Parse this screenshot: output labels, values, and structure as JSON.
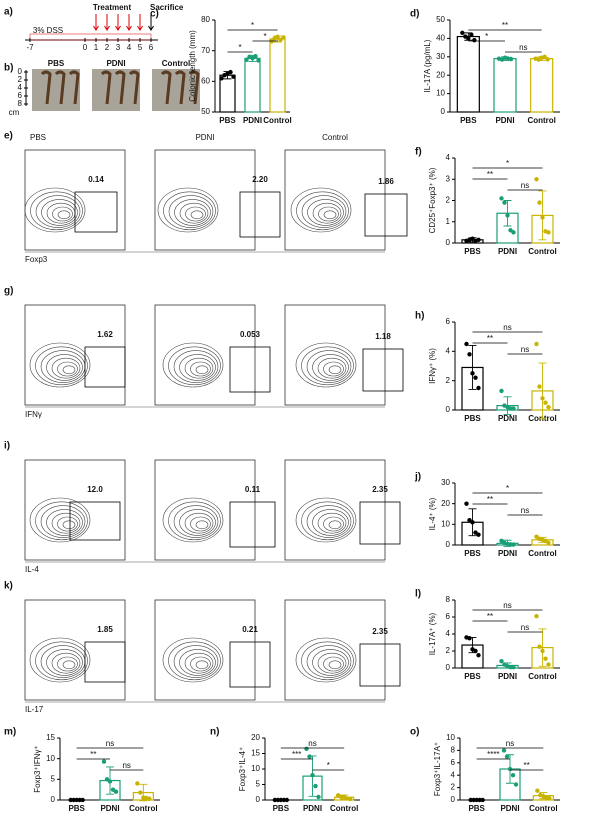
{
  "timeline": {
    "letter": "a)",
    "treatment": "Treatment",
    "sacrifice": "Sacrifice",
    "dss": "3% DSS",
    "days": [
      "-7",
      "0",
      "1",
      "2",
      "3",
      "4",
      "5",
      "6"
    ]
  },
  "photo": {
    "letter": "b)",
    "groups": [
      "PBS",
      "PDNI",
      "Control"
    ],
    "ruler": [
      "0",
      "2",
      "4",
      "6",
      "8"
    ],
    "unit": "cm"
  },
  "flow": {
    "columns": [
      "PBS",
      "PDNI",
      "Control"
    ],
    "rows": [
      {
        "letter": "e)",
        "axis": "Foxp3",
        "gates": [
          "0.14",
          "2.20",
          "1.86"
        ]
      },
      {
        "letter": "g)",
        "axis": "IFNγ",
        "gates": [
          "1.62",
          "0.053",
          "1.18"
        ]
      },
      {
        "letter": "i)",
        "axis": "IL-4",
        "gates": [
          "12.0",
          "0.11",
          "2.35"
        ]
      },
      {
        "letter": "k)",
        "axis": "IL-17",
        "gates": [
          "1.85",
          "0.21",
          "2.35"
        ]
      }
    ]
  },
  "chart_data": [
    {
      "type": "bar",
      "letter": "c)",
      "ylabel": "Colonic length (mm)",
      "categories": [
        "PBS",
        "PDNI",
        "Control"
      ],
      "colors": [
        "#000000",
        "#1a9e77",
        "#c8b400"
      ],
      "values": [
        62,
        67.5,
        73.8
      ],
      "errors": [
        1.2,
        1,
        1
      ],
      "points": [
        [
          61,
          62,
          62.5,
          63,
          61.5
        ],
        [
          67,
          68,
          67.5,
          68.2,
          66.8
        ],
        [
          73,
          74,
          74.5,
          73.5,
          74.3
        ]
      ],
      "ylim": [
        50,
        80
      ],
      "yticks": [
        50,
        60,
        70,
        80
      ],
      "comparisons": [
        {
          "groups": [
            "PBS",
            "PDNI"
          ],
          "label": "*"
        },
        {
          "groups": [
            "PDNI",
            "Control"
          ],
          "label": "*"
        },
        {
          "groups": [
            "PBS",
            "Control"
          ],
          "label": "*"
        }
      ]
    },
    {
      "type": "bar",
      "letter": "d)",
      "ylabel": "IL-17A (pg/mL)",
      "categories": [
        "PBS",
        "PDNI",
        "Control"
      ],
      "colors": [
        "#000000",
        "#1a9e77",
        "#c8b400"
      ],
      "values": [
        41,
        29,
        29
      ],
      "errors": [
        2,
        1,
        1
      ],
      "points": [
        [
          43,
          41,
          40,
          42,
          39
        ],
        [
          29,
          28.5,
          29.5,
          29,
          28.8
        ],
        [
          29,
          28.5,
          29.5,
          30,
          28.6
        ]
      ],
      "ylim": [
        0,
        50
      ],
      "yticks": [
        0,
        10,
        20,
        30,
        40,
        50
      ],
      "comparisons": [
        {
          "groups": [
            "PDNI",
            "Control"
          ],
          "label": "ns"
        },
        {
          "groups": [
            "PBS",
            "PDNI"
          ],
          "label": "*"
        },
        {
          "groups": [
            "PBS",
            "Control"
          ],
          "label": "**"
        }
      ]
    },
    {
      "type": "bar",
      "letter": "f)",
      "ylabel": "CD25⁺Foxp3⁺ (%)",
      "categories": [
        "PBS",
        "PDNI",
        "Control"
      ],
      "colors": [
        "#000000",
        "#1a9e77",
        "#c8b400"
      ],
      "values": [
        0.15,
        1.4,
        1.3
      ],
      "errors": [
        0.1,
        0.6,
        1.15
      ],
      "points": [
        [
          0.1,
          0.15,
          0.2,
          0.1,
          0.15
        ],
        [
          2.1,
          1.9,
          1.3,
          0.6,
          0.5
        ],
        [
          3,
          1.9,
          1.2,
          0.55,
          0.5
        ]
      ],
      "ylim": [
        0,
        4
      ],
      "yticks": [
        0,
        1,
        2,
        3,
        4
      ],
      "comparisons": [
        {
          "groups": [
            "PDNI",
            "Control"
          ],
          "label": "ns"
        },
        {
          "groups": [
            "PBS",
            "PDNI"
          ],
          "label": "**"
        },
        {
          "groups": [
            "PBS",
            "Control"
          ],
          "label": "*"
        }
      ]
    },
    {
      "type": "bar",
      "letter": "h)",
      "ylabel": "IFNγ⁺ (%)",
      "categories": [
        "PBS",
        "PDNI",
        "Control"
      ],
      "colors": [
        "#000000",
        "#1a9e77",
        "#c8b400"
      ],
      "values": [
        2.9,
        0.3,
        1.3
      ],
      "errors": [
        1.5,
        0.6,
        1.9
      ],
      "points": [
        [
          4.5,
          3.8,
          2.5,
          2.2,
          1.5
        ],
        [
          1.3,
          0.3,
          0.2,
          0.1,
          0.1
        ],
        [
          4.5,
          1.6,
          0.8,
          0.5,
          0.2
        ]
      ],
      "ylim": [
        0,
        6
      ],
      "yticks": [
        0,
        2,
        4,
        6
      ],
      "comparisons": [
        {
          "groups": [
            "PDNI",
            "Control"
          ],
          "label": "ns"
        },
        {
          "groups": [
            "PBS",
            "PDNI"
          ],
          "label": "**"
        },
        {
          "groups": [
            "PBS",
            "Control"
          ],
          "label": "ns"
        }
      ]
    },
    {
      "type": "bar",
      "letter": "j)",
      "ylabel": "IL-4⁺ (%)",
      "categories": [
        "PBS",
        "PDNI",
        "Control"
      ],
      "colors": [
        "#000000",
        "#1a9e77",
        "#c8b400"
      ],
      "values": [
        11,
        0.8,
        2.5
      ],
      "errors": [
        6.5,
        1.5,
        1.2
      ],
      "points": [
        [
          20,
          12,
          11,
          6,
          5
        ],
        [
          2,
          1,
          0.5,
          0.3,
          0.2
        ],
        [
          4,
          3,
          2.5,
          2,
          1
        ]
      ],
      "ylim": [
        0,
        30
      ],
      "yticks": [
        0,
        10,
        20,
        30
      ],
      "comparisons": [
        {
          "groups": [
            "PDNI",
            "Control"
          ],
          "label": "ns"
        },
        {
          "groups": [
            "PBS",
            "PDNI"
          ],
          "label": "**"
        },
        {
          "groups": [
            "PBS",
            "Control"
          ],
          "label": "*"
        }
      ]
    },
    {
      "type": "bar",
      "letter": "l)",
      "ylabel": "IL-17A⁺ (%)",
      "categories": [
        "PBS",
        "PDNI",
        "Control"
      ],
      "colors": [
        "#000000",
        "#1a9e77",
        "#c8b400"
      ],
      "values": [
        2.7,
        0.3,
        2.4
      ],
      "errors": [
        0.9,
        0.3,
        2.2
      ],
      "points": [
        [
          3.6,
          3.5,
          2.2,
          2,
          1.5
        ],
        [
          0.8,
          0.4,
          0.2,
          0.1,
          0.1
        ],
        [
          6.1,
          2.5,
          2,
          1.1,
          0.4
        ]
      ],
      "ylim": [
        0,
        8
      ],
      "yticks": [
        0,
        2,
        4,
        6,
        8
      ],
      "comparisons": [
        {
          "groups": [
            "PDNI",
            "Control"
          ],
          "label": "ns"
        },
        {
          "groups": [
            "PBS",
            "PDNI"
          ],
          "label": "**"
        },
        {
          "groups": [
            "PBS",
            "Control"
          ],
          "label": "ns"
        }
      ]
    },
    {
      "type": "bar",
      "letter": "m)",
      "ylabel": "Foxp3⁺IFNγ⁺",
      "categories": [
        "PBS",
        "PDNI",
        "Control"
      ],
      "colors": [
        "#000000",
        "#1a9e77",
        "#c8b400"
      ],
      "values": [
        0,
        4.7,
        1.8
      ],
      "errors": [
        0,
        3.3,
        2
      ],
      "points": [
        [
          0,
          0,
          0,
          0,
          0
        ],
        [
          9.3,
          5,
          4.5,
          2.5,
          2
        ],
        [
          4,
          1.8,
          0.6,
          0.5,
          0.3
        ]
      ],
      "ylim": [
        0,
        15
      ],
      "yticks": [
        0,
        5,
        10,
        15
      ],
      "comparisons": [
        {
          "groups": [
            "PDNI",
            "Control"
          ],
          "label": "ns"
        },
        {
          "groups": [
            "PBS",
            "PDNI"
          ],
          "label": "**"
        },
        {
          "groups": [
            "PBS",
            "Control"
          ],
          "label": "ns"
        }
      ]
    },
    {
      "type": "bar",
      "letter": "n)",
      "ylabel": "Foxp3⁺IL-4⁺",
      "categories": [
        "PBS",
        "PDNI",
        "Control"
      ],
      "colors": [
        "#000000",
        "#1a9e77",
        "#c8b400"
      ],
      "values": [
        0,
        7.7,
        0.9
      ],
      "errors": [
        0,
        6.5,
        0.7
      ],
      "points": [
        [
          0,
          0,
          0,
          0,
          0
        ],
        [
          16.5,
          14,
          8,
          4.5,
          1
        ],
        [
          1.5,
          1,
          1,
          0.5,
          0.3
        ]
      ],
      "ylim": [
        0,
        20
      ],
      "yticks": [
        0,
        5,
        10,
        15,
        20
      ],
      "comparisons": [
        {
          "groups": [
            "PDNI",
            "Control"
          ],
          "label": "*"
        },
        {
          "groups": [
            "PBS",
            "PDNI"
          ],
          "label": "***"
        },
        {
          "groups": [
            "PBS",
            "Control"
          ],
          "label": "ns"
        }
      ]
    },
    {
      "type": "bar",
      "letter": "o)",
      "ylabel": "Foxp3⁺IL-17A⁺",
      "categories": [
        "PBS",
        "PDNI",
        "Control"
      ],
      "colors": [
        "#000000",
        "#1a9e77",
        "#c8b400"
      ],
      "values": [
        0,
        5,
        0.7
      ],
      "errors": [
        0,
        2.3,
        0.5
      ],
      "points": [
        [
          0,
          0,
          0,
          0,
          0
        ],
        [
          8,
          7,
          5,
          4,
          2.5
        ],
        [
          1.5,
          0.8,
          0.6,
          0.4,
          0.3
        ]
      ],
      "ylim": [
        0,
        10
      ],
      "yticks": [
        0,
        2,
        4,
        6,
        8,
        10
      ],
      "comparisons": [
        {
          "groups": [
            "PDNI",
            "Control"
          ],
          "label": "**"
        },
        {
          "groups": [
            "PBS",
            "PDNI"
          ],
          "label": "****"
        },
        {
          "groups": [
            "PBS",
            "Control"
          ],
          "label": "ns"
        }
      ]
    }
  ]
}
